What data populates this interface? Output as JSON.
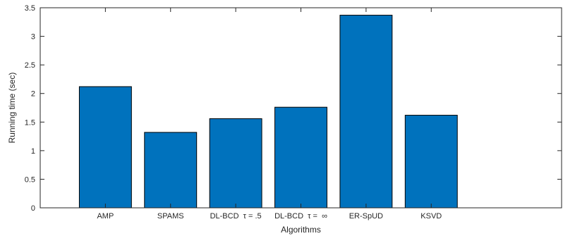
{
  "chart_data": {
    "type": "bar",
    "categories": [
      "AMP",
      "SPAMS",
      "DL-BCD  τ = .5",
      "DL-BCD  τ =  ∞",
      "ER-SpUD",
      "KSVD"
    ],
    "values": [
      2.12,
      1.32,
      1.56,
      1.76,
      3.37,
      1.62
    ],
    "title": "",
    "xlabel": "Algorithms",
    "ylabel": "Running time (sec)",
    "ylim": [
      0,
      3.5
    ],
    "yticks": [
      0,
      0.5,
      1,
      1.5,
      2,
      2.5,
      3,
      3.5
    ],
    "ytick_labels": [
      "0",
      "0.5",
      "1",
      "1.5",
      "2",
      "2.5",
      "3",
      "3.5"
    ],
    "grid": false,
    "bar_color": "#0072BD"
  }
}
